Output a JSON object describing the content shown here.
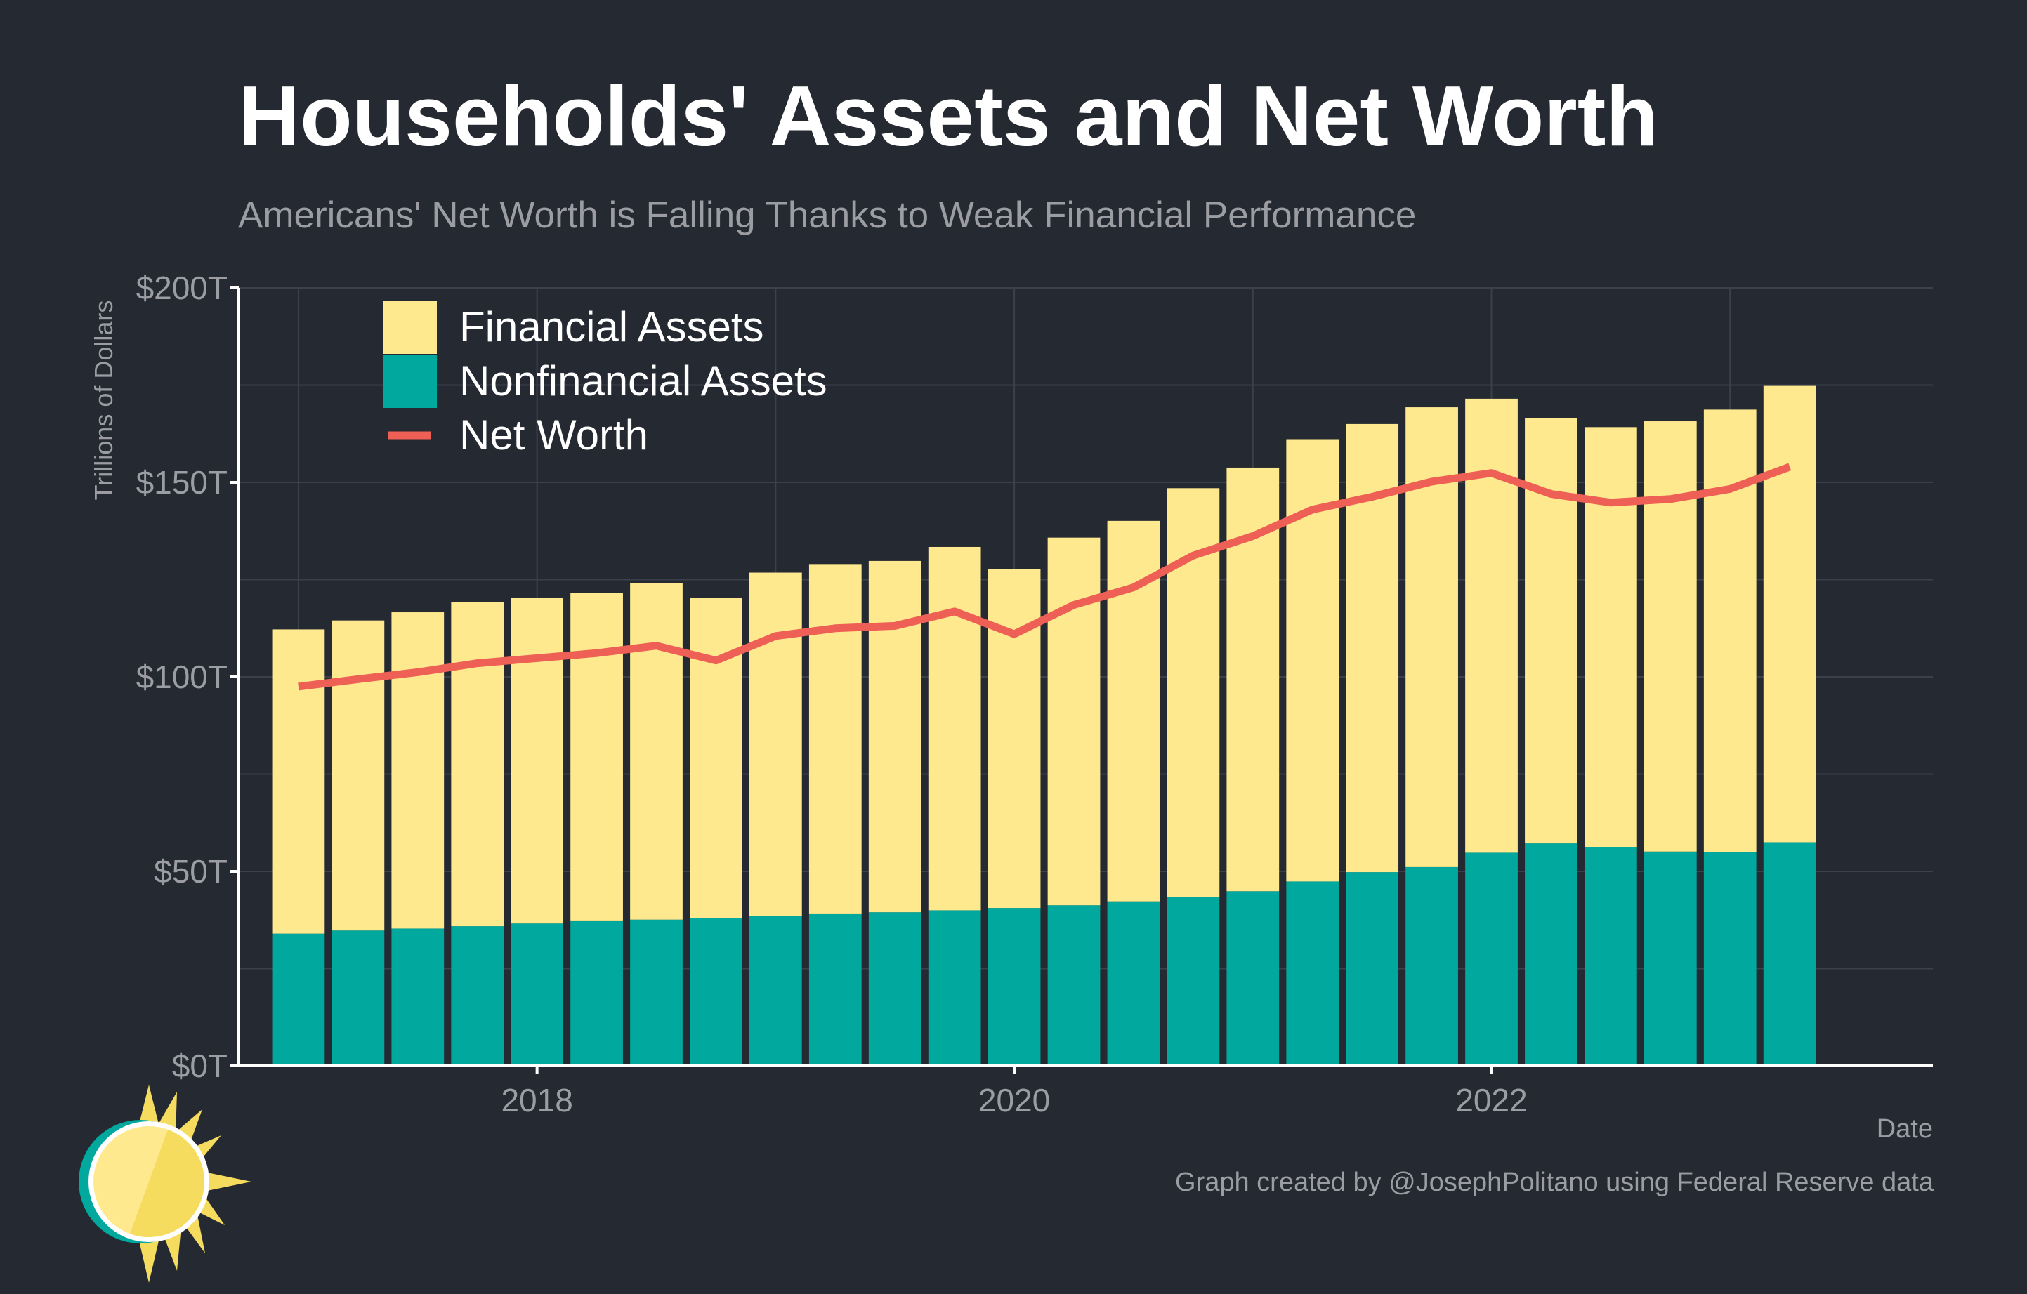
{
  "header": {
    "title": "Households' Assets and Net Worth",
    "subtitle": "Americans' Net Worth is Falling Thanks to Weak Financial Performance"
  },
  "footer": {
    "caption": "Graph created by @JosephPolitano using Federal Reserve data"
  },
  "colors": {
    "background": "#252932",
    "financial": "#ffe98f",
    "nonfinancial": "#00a89d",
    "net_worth": "#ee6055",
    "grid": "#3c404a",
    "axis_text": "#9b9da3",
    "axis_line": "#ffffff"
  },
  "logo": {
    "icon": "sun-logo-icon"
  },
  "chart_data": {
    "type": "bar",
    "stacked": true,
    "xlabel": "Date",
    "ylabel": "Trillions of Dollars",
    "ylim": [
      0,
      200
    ],
    "xlim": [
      2016.75,
      2023.85
    ],
    "x_ticks": [
      2018,
      2020,
      2022
    ],
    "y_ticks": [
      0,
      50,
      100,
      150,
      200
    ],
    "y_tick_labels": [
      "$0T",
      "$50T",
      "$100T",
      "$150T",
      "$200T"
    ],
    "grid": true,
    "legend_position": "top-left",
    "x": [
      2017.0,
      2017.25,
      2017.5,
      2017.75,
      2018.0,
      2018.25,
      2018.5,
      2018.75,
      2019.0,
      2019.25,
      2019.5,
      2019.75,
      2020.0,
      2020.25,
      2020.5,
      2020.75,
      2021.0,
      2021.25,
      2021.5,
      2021.75,
      2022.0,
      2022.25,
      2022.5,
      2022.75,
      2023.0,
      2023.25
    ],
    "series": [
      {
        "name": "Nonfinancial Assets",
        "kind": "bar",
        "values": [
          34,
          34.8,
          35.3,
          35.9,
          36.6,
          37.2,
          37.6,
          38,
          38.5,
          39,
          39.5,
          40,
          40.6,
          41.3,
          42.3,
          43.5,
          44.9,
          47.4,
          49.8,
          51.1,
          54.8,
          57.2,
          56.2,
          55.1,
          54.9,
          57.5
        ]
      },
      {
        "name": "Financial Assets",
        "kind": "bar",
        "values": [
          78.2,
          79.7,
          81.3,
          83.3,
          83.8,
          84.4,
          86.5,
          82.3,
          88.3,
          90,
          90.3,
          93.4,
          87.1,
          94.5,
          97.8,
          105,
          108.9,
          113.7,
          115.2,
          118.2,
          116.7,
          109.4,
          108,
          110.6,
          113.8,
          117.3
        ]
      },
      {
        "name": "Net Worth",
        "kind": "line",
        "values": [
          97.5,
          99.4,
          101.2,
          103.5,
          104.8,
          106.1,
          108,
          104.2,
          110.5,
          112.5,
          113.1,
          116.8,
          111,
          118.5,
          123,
          131.2,
          136.2,
          143,
          146.3,
          150.2,
          152.4,
          147,
          144.8,
          145.7,
          148.3,
          154
        ]
      }
    ]
  }
}
